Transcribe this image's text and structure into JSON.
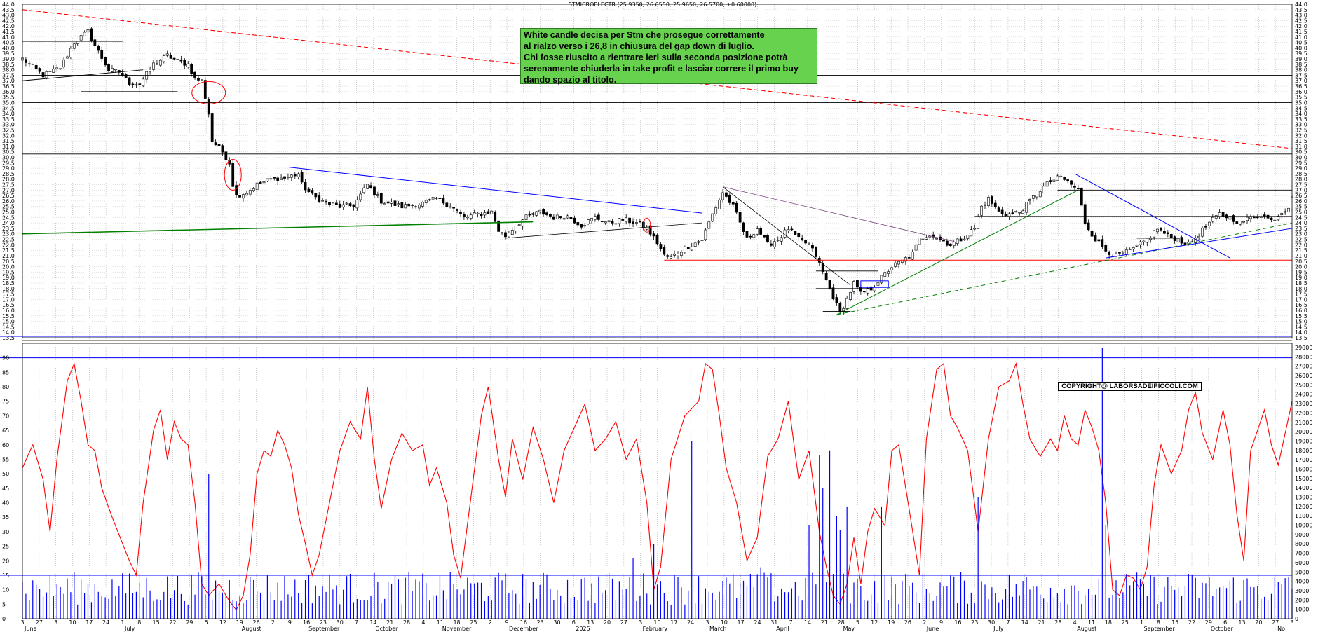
{
  "header": {
    "title": "STMICROELECTR (25.9350, 26.6550, 25.9650, 26.5700, +0.60000)"
  },
  "annotation": {
    "lines": [
      "White candle decisa per Stm che prosegue correttamente",
      "al rialzo verso i 26,8 in chiusura del gap down di luglio.",
      "Chi fosse riuscito a rientrare ieri sulla seconda posizione potrà",
      "serenamente chiuderla in take profit e lasciar correre il primo buy",
      "dando spazio al titolo."
    ]
  },
  "copyright": "COPYRIGHT@ LABORSADEIPICCOLI.COM",
  "colors": {
    "candle": "#000000",
    "red_line": "#ff0000",
    "blue_line": "#0000ff",
    "green_line": "#008000",
    "volume": "#0000ff",
    "oscillator": "#ff0000"
  },
  "chart_data": [
    {
      "type": "candlestick",
      "title": "STMICROELECTR",
      "ylim": [
        13.5,
        44.0
      ],
      "y_ticks": [
        "44.0",
        "43.5",
        "43.0",
        "42.5",
        "42.0",
        "41.5",
        "41.0",
        "40.5",
        "40.0",
        "39.5",
        "39.0",
        "38.5",
        "38.0",
        "37.5",
        "37.0",
        "36.5",
        "36.0",
        "35.5",
        "35.0",
        "34.5",
        "34.0",
        "33.5",
        "33.0",
        "32.5",
        "32.0",
        "31.5",
        "31.0",
        "30.5",
        "30.0",
        "29.5",
        "29.0",
        "28.5",
        "28.0",
        "27.5",
        "27.0",
        "26.5",
        "26.0",
        "25.5",
        "25.0",
        "24.5",
        "24.0",
        "23.5",
        "23.0",
        "22.5",
        "22.0",
        "21.5",
        "21.0",
        "20.5",
        "20.0",
        "19.5",
        "19.0",
        "18.5",
        "18.0",
        "17.5",
        "17.0",
        "16.5",
        "16.0",
        "15.5",
        "15.0",
        "14.5",
        "14.0",
        "13.5"
      ],
      "close_anchors": [
        [
          0,
          39.0
        ],
        [
          6,
          37.5
        ],
        [
          11,
          38.2
        ],
        [
          15,
          40.5
        ],
        [
          19,
          41.5
        ],
        [
          21,
          40.2
        ],
        [
          25,
          38.0
        ],
        [
          28,
          37.8
        ],
        [
          31,
          36.8
        ],
        [
          34,
          36.7
        ],
        [
          38,
          38.5
        ],
        [
          42,
          39.3
        ],
        [
          45,
          38.8
        ],
        [
          48,
          38.5
        ],
        [
          50,
          37.2
        ],
        [
          52,
          37.0
        ],
        [
          54,
          34.0
        ],
        [
          55,
          31.5
        ],
        [
          58,
          30.5
        ],
        [
          60,
          29.5
        ],
        [
          61,
          27.5
        ],
        [
          62,
          26.5
        ],
        [
          65,
          26.8
        ],
        [
          68,
          27.5
        ],
        [
          72,
          28.0
        ],
        [
          76,
          28.1
        ],
        [
          80,
          28.5
        ],
        [
          81,
          27.5
        ],
        [
          84,
          26.5
        ],
        [
          88,
          25.8
        ],
        [
          92,
          25.5
        ],
        [
          96,
          25.6
        ],
        [
          100,
          27.5
        ],
        [
          104,
          26.0
        ],
        [
          110,
          25.5
        ],
        [
          116,
          25.8
        ],
        [
          120,
          26.2
        ],
        [
          124,
          25.6
        ],
        [
          128,
          24.5
        ],
        [
          132,
          24.8
        ],
        [
          136,
          25.0
        ],
        [
          138,
          23.3
        ],
        [
          140,
          22.8
        ],
        [
          143,
          23.8
        ],
        [
          146,
          24.5
        ],
        [
          150,
          25.0
        ],
        [
          154,
          24.5
        ],
        [
          158,
          24.6
        ],
        [
          162,
          23.8
        ],
        [
          166,
          24.5
        ],
        [
          170,
          24.0
        ],
        [
          174,
          24.3
        ],
        [
          178,
          24.0
        ],
        [
          181,
          23.5
        ],
        [
          184,
          22.2
        ],
        [
          186,
          21.0
        ],
        [
          188,
          20.8
        ],
        [
          191,
          21.5
        ],
        [
          194,
          22.0
        ],
        [
          197,
          22.5
        ],
        [
          200,
          24.8
        ],
        [
          203,
          26.8
        ],
        [
          206,
          25.5
        ],
        [
          208,
          24.0
        ],
        [
          210,
          22.5
        ],
        [
          213,
          23.5
        ],
        [
          216,
          22.0
        ],
        [
          219,
          22.5
        ],
        [
          222,
          23.5
        ],
        [
          225,
          22.5
        ],
        [
          228,
          22.0
        ],
        [
          230,
          21.0
        ],
        [
          232,
          19.5
        ],
        [
          234,
          18.0
        ],
        [
          236,
          16.5
        ],
        [
          237,
          15.8
        ],
        [
          239,
          17.0
        ],
        [
          241,
          18.5
        ],
        [
          243,
          17.5
        ],
        [
          246,
          18.0
        ],
        [
          249,
          19.0
        ],
        [
          252,
          20.0
        ],
        [
          255,
          20.5
        ],
        [
          258,
          21.2
        ],
        [
          260,
          22.5
        ],
        [
          263,
          23.0
        ],
        [
          266,
          22.5
        ],
        [
          269,
          22.0
        ],
        [
          272,
          22.5
        ],
        [
          276,
          23.5
        ],
        [
          278,
          25.5
        ],
        [
          280,
          26.2
        ],
        [
          283,
          25.0
        ],
        [
          286,
          24.8
        ],
        [
          289,
          25.0
        ],
        [
          292,
          26.0
        ],
        [
          295,
          27.0
        ],
        [
          298,
          27.8
        ],
        [
          301,
          28.2
        ],
        [
          304,
          27.5
        ],
        [
          306,
          27.0
        ],
        [
          308,
          24.0
        ],
        [
          311,
          22.5
        ],
        [
          314,
          21.5
        ],
        [
          317,
          21.0
        ],
        [
          320,
          21.3
        ],
        [
          323,
          21.8
        ],
        [
          326,
          22.5
        ],
        [
          329,
          23.5
        ],
        [
          332,
          22.8
        ],
        [
          335,
          22.5
        ],
        [
          338,
          22.0
        ],
        [
          341,
          23.0
        ],
        [
          344,
          24.0
        ],
        [
          347,
          24.8
        ],
        [
          350,
          24.5
        ],
        [
          353,
          24.0
        ],
        [
          356,
          24.5
        ],
        [
          359,
          24.8
        ],
        [
          362,
          24.2
        ],
        [
          365,
          25.0
        ],
        [
          367,
          25.5
        ],
        [
          368,
          26.57
        ]
      ],
      "x_labels_top": [
        "3",
        "27",
        "3",
        "10",
        "17",
        "24",
        "1",
        "8",
        "15",
        "22",
        "29",
        "5",
        "12",
        "19",
        "26",
        "2",
        "9",
        "16",
        "23",
        "30",
        "7",
        "14",
        "21",
        "28",
        "4",
        "11",
        "18",
        "25",
        "2",
        "9",
        "16",
        "23",
        "30",
        "6",
        "13",
        "20",
        "27",
        "3",
        "10",
        "17",
        "24",
        "3",
        "10",
        "17",
        "24",
        "31",
        "7",
        "14",
        "21",
        "28",
        "5",
        "12",
        "19",
        "26",
        "2",
        "9",
        "16",
        "23",
        "30",
        "7",
        "14",
        "21",
        "28",
        "4",
        "11",
        "18",
        "25",
        "1",
        "8",
        "15",
        "22",
        "29",
        "6",
        "13",
        "20",
        "27",
        "3"
      ],
      "x_labels_bottom": [
        "June",
        "July",
        "August",
        "September",
        "October",
        "November",
        "December",
        "2025",
        "February",
        "March",
        "April",
        "May",
        "June",
        "July",
        "August",
        "September",
        "October",
        "No"
      ]
    },
    {
      "type": "line",
      "name": "oscillator",
      "ylim": [
        0,
        95
      ],
      "y_ticks": [
        "90",
        "85",
        "80",
        "75",
        "70",
        "65",
        "60",
        "55",
        "50",
        "45",
        "40",
        "35",
        "30",
        "25",
        "20",
        "15",
        "10",
        "5",
        "0"
      ],
      "reference_lines": [
        90,
        15
      ],
      "series_anchors": [
        [
          0,
          52
        ],
        [
          3,
          60
        ],
        [
          6,
          48
        ],
        [
          8,
          30
        ],
        [
          10,
          55
        ],
        [
          13,
          82
        ],
        [
          15,
          88
        ],
        [
          17,
          75
        ],
        [
          19,
          60
        ],
        [
          21,
          58
        ],
        [
          23,
          45
        ],
        [
          26,
          35
        ],
        [
          29,
          26
        ],
        [
          31,
          20
        ],
        [
          33,
          15
        ],
        [
          35,
          40
        ],
        [
          38,
          65
        ],
        [
          40,
          72
        ],
        [
          42,
          55
        ],
        [
          44,
          68
        ],
        [
          46,
          62
        ],
        [
          48,
          60
        ],
        [
          50,
          40
        ],
        [
          52,
          12
        ],
        [
          54,
          8
        ],
        [
          57,
          12
        ],
        [
          60,
          6
        ],
        [
          62,
          3
        ],
        [
          64,
          8
        ],
        [
          66,
          22
        ],
        [
          68,
          50
        ],
        [
          70,
          58
        ],
        [
          72,
          56
        ],
        [
          74,
          65
        ],
        [
          76,
          60
        ],
        [
          78,
          52
        ],
        [
          80,
          36
        ],
        [
          82,
          26
        ],
        [
          84,
          15
        ],
        [
          86,
          22
        ],
        [
          89,
          40
        ],
        [
          92,
          58
        ],
        [
          95,
          68
        ],
        [
          98,
          62
        ],
        [
          100,
          80
        ],
        [
          102,
          55
        ],
        [
          104,
          38
        ],
        [
          107,
          55
        ],
        [
          110,
          64
        ],
        [
          113,
          58
        ],
        [
          116,
          60
        ],
        [
          118,
          46
        ],
        [
          120,
          52
        ],
        [
          123,
          40
        ],
        [
          125,
          22
        ],
        [
          127,
          14
        ],
        [
          130,
          42
        ],
        [
          133,
          70
        ],
        [
          135,
          80
        ],
        [
          138,
          55
        ],
        [
          140,
          42
        ],
        [
          142,
          62
        ],
        [
          145,
          48
        ],
        [
          148,
          66
        ],
        [
          151,
          55
        ],
        [
          154,
          40
        ],
        [
          157,
          58
        ],
        [
          160,
          66
        ],
        [
          163,
          74
        ],
        [
          166,
          58
        ],
        [
          169,
          62
        ],
        [
          172,
          68
        ],
        [
          175,
          55
        ],
        [
          178,
          62
        ],
        [
          181,
          40
        ],
        [
          183,
          10
        ],
        [
          185,
          18
        ],
        [
          188,
          55
        ],
        [
          192,
          70
        ],
        [
          196,
          75
        ],
        [
          198,
          88
        ],
        [
          200,
          86
        ],
        [
          202,
          70
        ],
        [
          204,
          52
        ],
        [
          207,
          40
        ],
        [
          210,
          20
        ],
        [
          213,
          28
        ],
        [
          216,
          56
        ],
        [
          219,
          62
        ],
        [
          222,
          75
        ],
        [
          225,
          48
        ],
        [
          228,
          58
        ],
        [
          231,
          30
        ],
        [
          233,
          18
        ],
        [
          235,
          8
        ],
        [
          237,
          5
        ],
        [
          239,
          12
        ],
        [
          241,
          28
        ],
        [
          243,
          12
        ],
        [
          245,
          30
        ],
        [
          247,
          38
        ],
        [
          250,
          32
        ],
        [
          252,
          58
        ],
        [
          254,
          60
        ],
        [
          257,
          38
        ],
        [
          260,
          15
        ],
        [
          262,
          62
        ],
        [
          265,
          86
        ],
        [
          267,
          88
        ],
        [
          269,
          70
        ],
        [
          271,
          66
        ],
        [
          274,
          58
        ],
        [
          277,
          30
        ],
        [
          280,
          62
        ],
        [
          283,
          80
        ],
        [
          286,
          82
        ],
        [
          288,
          88
        ],
        [
          290,
          74
        ],
        [
          292,
          62
        ],
        [
          295,
          56
        ],
        [
          298,
          62
        ],
        [
          300,
          58
        ],
        [
          302,
          70
        ],
        [
          304,
          62
        ],
        [
          306,
          60
        ],
        [
          308,
          72
        ],
        [
          310,
          66
        ],
        [
          312,
          58
        ],
        [
          314,
          40
        ],
        [
          316,
          10
        ],
        [
          318,
          8
        ],
        [
          320,
          15
        ],
        [
          322,
          14
        ],
        [
          324,
          10
        ],
        [
          326,
          18
        ],
        [
          328,
          46
        ],
        [
          330,
          60
        ],
        [
          333,
          50
        ],
        [
          336,
          58
        ],
        [
          338,
          72
        ],
        [
          340,
          78
        ],
        [
          342,
          64
        ],
        [
          345,
          55
        ],
        [
          348,
          72
        ],
        [
          350,
          60
        ],
        [
          352,
          36
        ],
        [
          354,
          20
        ],
        [
          356,
          58
        ],
        [
          358,
          65
        ],
        [
          360,
          72
        ],
        [
          362,
          60
        ],
        [
          364,
          53
        ],
        [
          366,
          64
        ],
        [
          368,
          75
        ]
      ]
    },
    {
      "type": "bar",
      "name": "volume",
      "ylim": [
        0,
        29000
      ],
      "y_ticks": [
        "29000",
        "28000",
        "27000",
        "26000",
        "25000",
        "24000",
        "23000",
        "22000",
        "21000",
        "20000",
        "19000",
        "18000",
        "17000",
        "16000",
        "15000",
        "14000",
        "13000",
        "12000",
        "11000",
        "10000",
        "9000",
        "8000",
        "7000",
        "6000",
        "5000",
        "4000",
        "3000",
        "2000",
        "1000",
        "0"
      ],
      "spikes": [
        [
          54,
          15500
        ],
        [
          177,
          6500
        ],
        [
          183,
          8000
        ],
        [
          194,
          19000
        ],
        [
          214,
          5500
        ],
        [
          228,
          10000
        ],
        [
          231,
          17500
        ],
        [
          232,
          14000
        ],
        [
          234,
          18000
        ],
        [
          236,
          11000
        ],
        [
          237,
          9500
        ],
        [
          239,
          12000
        ],
        [
          249,
          12000
        ],
        [
          277,
          13000
        ],
        [
          313,
          29000
        ],
        [
          314,
          10000
        ]
      ]
    }
  ]
}
